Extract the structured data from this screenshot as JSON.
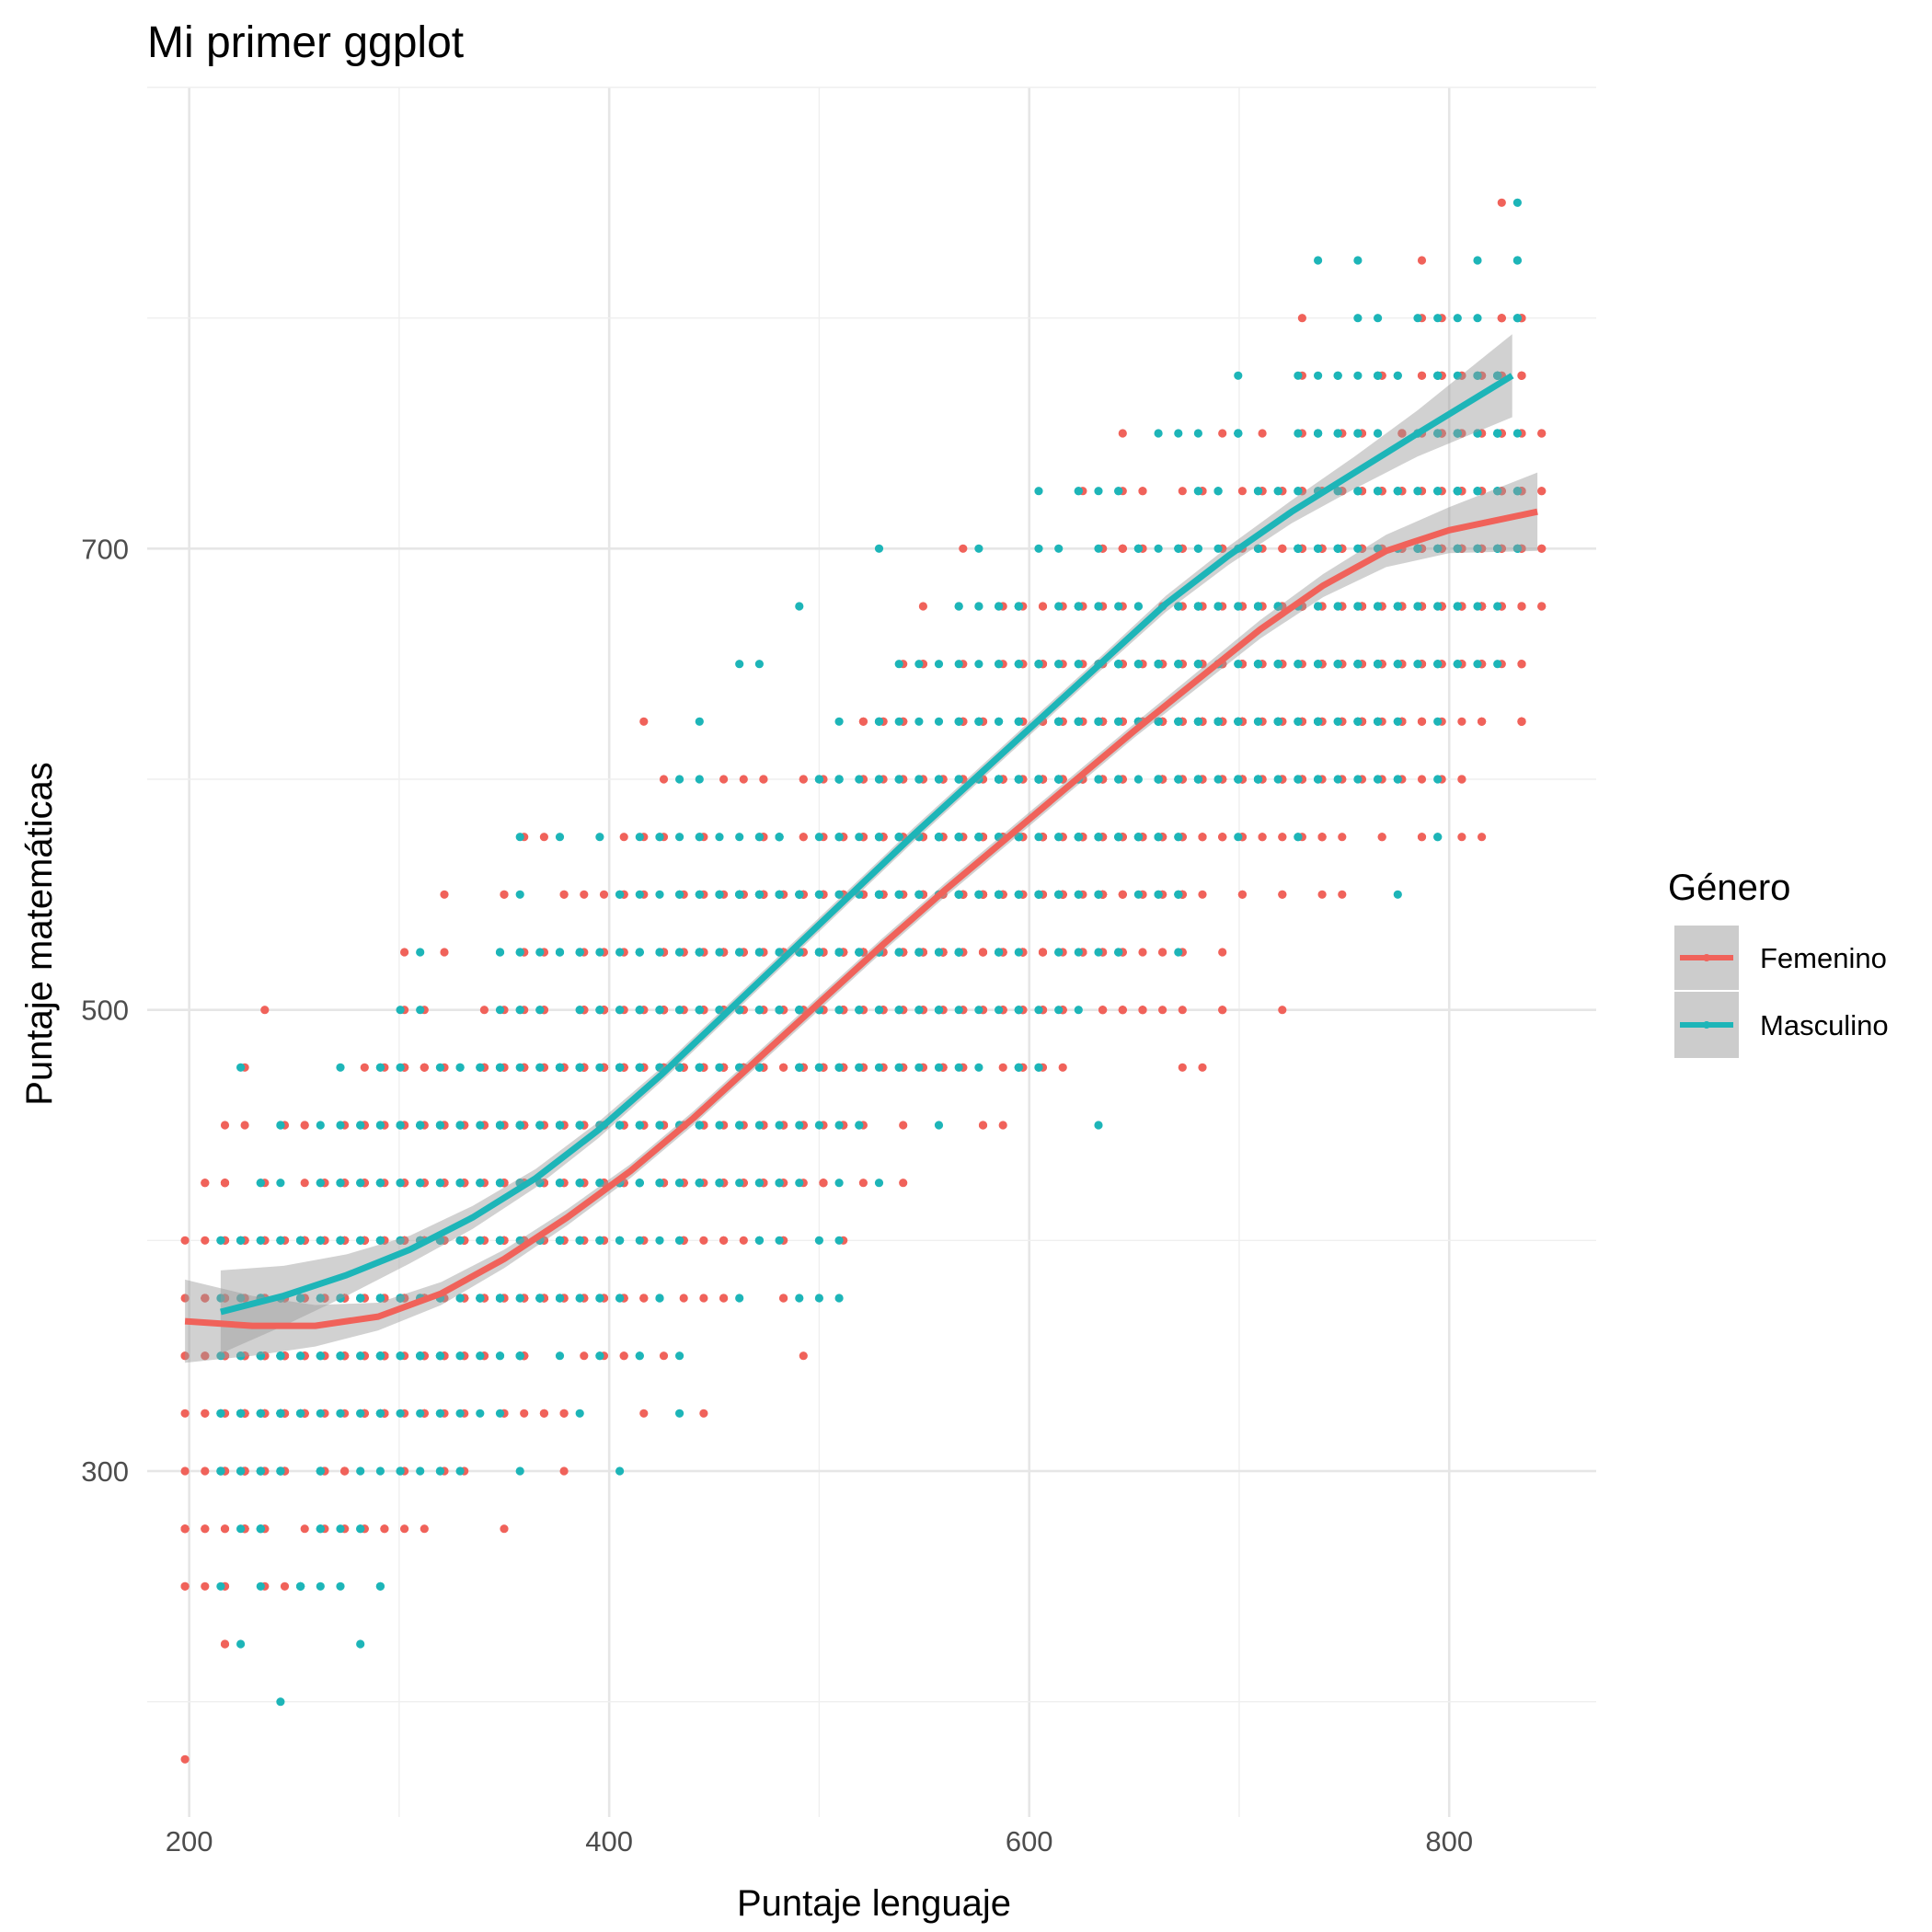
{
  "colors": {
    "femenino": "#F0625A",
    "masculino": "#1DB5B8",
    "ribbon": "#999999",
    "grid": "#e6e6e6",
    "tick_text": "#4d4d4d"
  },
  "chart_data": {
    "type": "scatter",
    "title": "Mi primer ggplot",
    "xlabel": "Puntaje lenguaje",
    "ylabel": "Puntaje matemáticas",
    "xlim": [
      180,
      870
    ],
    "ylim": [
      150,
      900
    ],
    "x_ticks": [
      200,
      400,
      600,
      800
    ],
    "x_tick_labels": [
      "200",
      "400",
      "600",
      "800"
    ],
    "y_ticks": [
      300,
      500,
      700
    ],
    "y_tick_labels": [
      "300",
      "500",
      "700"
    ],
    "grid": true,
    "legend": {
      "title": "Género",
      "position": "right"
    },
    "series": [
      {
        "name": "Femenino",
        "color": "#F0625A",
        "point_model": {
          "slope": 0.62,
          "intercept": 200,
          "noise_sd": 52,
          "x_range": [
            198,
            842
          ],
          "count": 1900,
          "x_step": 9.5,
          "y_step": 25,
          "seed": 7
        },
        "smooth": {
          "x": [
            198,
            230,
            260,
            290,
            320,
            350,
            380,
            410,
            440,
            470,
            500,
            530,
            560,
            590,
            620,
            650,
            680,
            710,
            740,
            770,
            800,
            842
          ],
          "y": [
            365,
            363,
            363,
            367,
            377,
            392,
            410,
            430,
            453,
            478,
            503,
            528,
            552,
            575,
            598,
            621,
            643,
            665,
            684,
            699,
            708,
            716
          ],
          "se": [
            18,
            13,
            9,
            6,
            5,
            4,
            3.5,
            3,
            3,
            3,
            3,
            3,
            3,
            3,
            3,
            3,
            3.5,
            4,
            5,
            7,
            10,
            17
          ]
        }
      },
      {
        "name": "Masculino",
        "color": "#1DB5B8",
        "point_model": {
          "slope": 0.66,
          "intercept": 190,
          "noise_sd": 52,
          "x_range": [
            215,
            835
          ],
          "count": 1600,
          "x_step": 9.5,
          "y_step": 25,
          "seed": 19
        },
        "smooth": {
          "x": [
            215,
            245,
            275,
            305,
            335,
            365,
            395,
            425,
            455,
            485,
            515,
            545,
            575,
            605,
            635,
            665,
            695,
            725,
            755,
            785,
            830
          ],
          "y": [
            369,
            376,
            385,
            396,
            410,
            427,
            448,
            472,
            498,
            524,
            550,
            576,
            601,
            626,
            651,
            676,
            697,
            716,
            733,
            750,
            775
          ],
          "se": [
            18,
            13,
            9,
            6,
            5,
            4,
            3.5,
            3,
            3,
            3,
            3,
            3,
            3,
            3,
            3,
            3.5,
            4,
            5,
            7,
            10,
            18
          ]
        }
      }
    ]
  }
}
